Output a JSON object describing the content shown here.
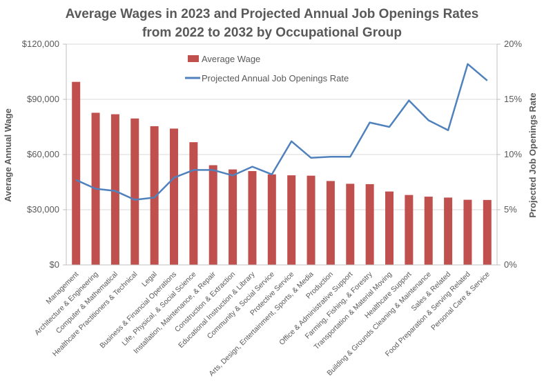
{
  "chart_data": {
    "type": "bar+line",
    "title_lines": [
      "Average Wages in 2023 and Projected Annual Job Openings Rates",
      "from 2022 to 2032 by Occupational Group"
    ],
    "ylabel_left": "Average Annual Wage",
    "ylabel_right": "Projected Job Openings Rate",
    "ylim_left": [
      0,
      120000
    ],
    "ylim_right": [
      0,
      0.2
    ],
    "left_ticks": [
      {
        "value": 0,
        "label": "$0"
      },
      {
        "value": 30000,
        "label": "$30,000"
      },
      {
        "value": 60000,
        "label": "$60,000"
      },
      {
        "value": 90000,
        "label": "$90,000"
      },
      {
        "value": 120000,
        "label": "$120,000"
      }
    ],
    "right_ticks": [
      {
        "value": 0,
        "label": "0%"
      },
      {
        "value": 0.05,
        "label": "5%"
      },
      {
        "value": 0.1,
        "label": "10%"
      },
      {
        "value": 0.15,
        "label": "15%"
      },
      {
        "value": 0.2,
        "label": "20%"
      }
    ],
    "categories": [
      "Management",
      "Architecture & Engineering",
      "Computer & Mathematical",
      "Healthcare Practitioners & Technical",
      "Legal",
      "Business & Financial Operations",
      "Life, Physical, & Social Science",
      "Installation, Maintenance, & Repair",
      "Construction & Extraction",
      "Educational Instruction & Library",
      "Community & Social Service",
      "Protective Service",
      "Arts, Design, Entertainment, Sports, & Media",
      "Production",
      "Office & Administrative Support",
      "Farming, Fishing, & Forestry",
      "Transportation & Material Moving",
      "Healthcare Support",
      "Building & Grounds Cleaning & Maintenance",
      "Sales & Related",
      "Food Preparation & Serving Related",
      "Personal Care & Service"
    ],
    "series": [
      {
        "name": "Average Wage",
        "type": "bar",
        "axis": "left",
        "color": "#C0504D",
        "values": [
          99500,
          82700,
          81900,
          79600,
          75400,
          74100,
          66700,
          54200,
          51900,
          51000,
          49200,
          48700,
          48500,
          45600,
          44100,
          43900,
          39900,
          38000,
          37100,
          36600,
          35400,
          35300
        ]
      },
      {
        "name": "Projected Annual Job Openings Rate",
        "type": "line",
        "axis": "right",
        "color": "#4F81BD",
        "values": [
          0.077,
          0.069,
          0.067,
          0.059,
          0.061,
          0.079,
          0.086,
          0.086,
          0.081,
          0.089,
          0.082,
          0.112,
          0.097,
          0.098,
          0.098,
          0.129,
          0.125,
          0.149,
          0.131,
          0.122,
          0.182,
          0.167
        ]
      }
    ],
    "legend_position": "top-center"
  }
}
